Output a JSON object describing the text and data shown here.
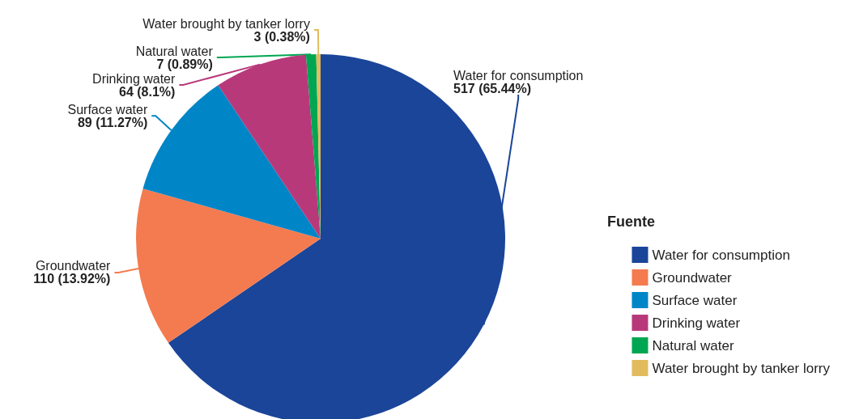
{
  "chart_data": {
    "type": "pie",
    "categories": [
      "Water for consumption",
      "Groundwater",
      "Surface water",
      "Drinking water",
      "Natural water",
      "Water brought by tanker lorry"
    ],
    "values": [
      517,
      110,
      89,
      64,
      7,
      3
    ],
    "value_labels": [
      "517 (65.44%)",
      "110 (13.92%)",
      "89 (11.27%)",
      "64 (8.1%)",
      "7 (0.89%)",
      "3 (0.38%)"
    ],
    "colors": [
      "#1a4599",
      "#f47b4f",
      "#0085c7",
      "#b8397a",
      "#00a651",
      "#e2bb5e"
    ],
    "legend_title": "Fuente",
    "legend": "right"
  }
}
